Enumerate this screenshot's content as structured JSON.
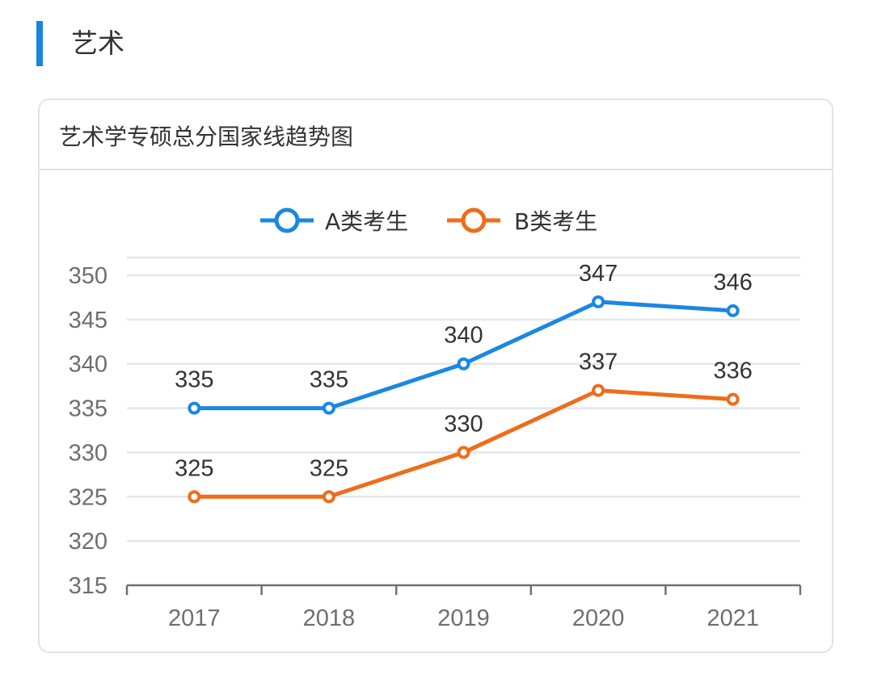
{
  "section": {
    "title": "艺术"
  },
  "card": {
    "title": "艺术学专硕总分国家线趋势图"
  },
  "colors": {
    "accent": "#1784e0",
    "seriesA": "#1a87e2",
    "seriesB": "#ef6c1a"
  },
  "chart_data": {
    "type": "line",
    "title": "艺术学专硕总分国家线趋势图",
    "xlabel": "",
    "ylabel": "",
    "categories": [
      "2017",
      "2018",
      "2019",
      "2020",
      "2021"
    ],
    "series": [
      {
        "name": "A类考生",
        "values": [
          335,
          335,
          340,
          347,
          346
        ]
      },
      {
        "name": "B类考生",
        "values": [
          325,
          325,
          330,
          337,
          336
        ]
      }
    ],
    "ylim": [
      315,
      352
    ],
    "yticks": [
      315,
      320,
      325,
      330,
      335,
      340,
      345,
      350
    ],
    "grid": true,
    "legend": "top-center",
    "data_labels": true
  }
}
